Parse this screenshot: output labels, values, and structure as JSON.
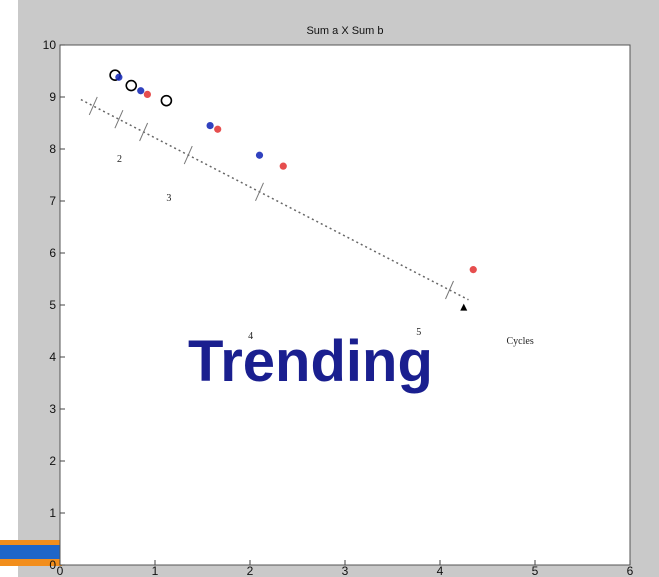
{
  "chart_data": {
    "type": "scatter",
    "title": "Sum a X Sum b",
    "xlabel": "",
    "ylabel": "",
    "xlim": [
      0,
      6
    ],
    "ylim": [
      0,
      10
    ],
    "xticks": [
      "0",
      "1",
      "2",
      "3",
      "4",
      "5",
      "6"
    ],
    "yticks": [
      "0",
      "1",
      "2",
      "3",
      "4",
      "5",
      "6",
      "7",
      "8",
      "9",
      "10"
    ],
    "grid": false,
    "series": [
      {
        "marker": "circle",
        "color": "#000000",
        "points": [
          [
            0.58,
            9.42
          ],
          [
            0.75,
            9.22
          ],
          [
            1.12,
            8.93
          ]
        ]
      },
      {
        "marker": "dot",
        "color": "#1b2db8",
        "points": [
          [
            0.62,
            9.38
          ],
          [
            0.85,
            9.12
          ],
          [
            1.58,
            8.45
          ],
          [
            2.1,
            7.88
          ]
        ]
      },
      {
        "marker": "dot",
        "color": "#e33b3b",
        "points": [
          [
            0.92,
            9.05
          ],
          [
            1.66,
            8.38
          ],
          [
            2.35,
            7.67
          ],
          [
            4.35,
            5.68
          ]
        ]
      },
      {
        "marker": "triangle",
        "color": "#000000",
        "points": [
          [
            4.25,
            4.95
          ]
        ]
      }
    ],
    "trend_line": {
      "style": "dotted",
      "points": [
        [
          0.22,
          8.95
        ],
        [
          4.3,
          5.1
        ]
      ],
      "tick_marks_x": [
        0.35,
        0.62,
        0.88,
        1.35,
        2.1,
        4.1
      ]
    },
    "annotations": [
      {
        "text": "2",
        "x": 0.6,
        "y": 7.75
      },
      {
        "text": "3",
        "x": 1.12,
        "y": 7.0
      },
      {
        "text": "4",
        "x": 1.98,
        "y": 4.35
      },
      {
        "text": "5",
        "x": 3.75,
        "y": 4.42
      },
      {
        "text": "Cycles",
        "x": 4.7,
        "y": 4.25
      }
    ]
  },
  "overlay": {
    "text": "Trending",
    "color": "#1a1f8f"
  },
  "colors": {
    "accent_orange": "#f28e1c",
    "accent_blue": "#1f66c8",
    "figure_background": "#c9c9c9",
    "axes_background": "#ffffff"
  }
}
